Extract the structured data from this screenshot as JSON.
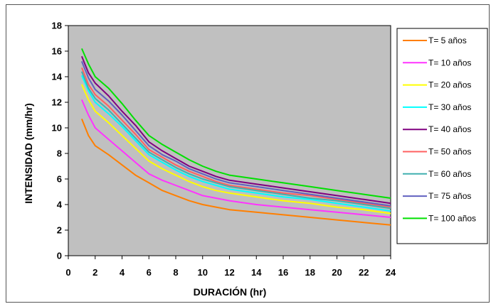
{
  "chart_data": {
    "type": "line",
    "title": "",
    "xlabel": "DURACIÓN (hr)",
    "ylabel": "INTENSIDAD (mm/hr)",
    "xlim": [
      0,
      24
    ],
    "ylim": [
      0,
      18
    ],
    "xticks": [
      0,
      2,
      4,
      6,
      8,
      10,
      12,
      14,
      16,
      18,
      20,
      22,
      24
    ],
    "yticks": [
      0,
      2,
      4,
      6,
      8,
      10,
      12,
      14,
      16,
      18
    ],
    "plot_background": "#c0c0c0",
    "grid": false,
    "legend_position": "right",
    "x": [
      1,
      1.5,
      2,
      3,
      4,
      5,
      6,
      7,
      8,
      9,
      10,
      11,
      12,
      14,
      16,
      18,
      20,
      22,
      24
    ],
    "series": [
      {
        "name": "T= 5 años",
        "color": "#ff7f00",
        "values": [
          10.7,
          9.4,
          8.6,
          7.9,
          7.1,
          6.3,
          5.7,
          5.1,
          4.7,
          4.3,
          4.0,
          3.8,
          3.6,
          3.4,
          3.2,
          3.0,
          2.8,
          2.6,
          2.4
        ]
      },
      {
        "name": "T= 10 años",
        "color": "#ff33ff",
        "values": [
          12.2,
          11.0,
          10.0,
          9.1,
          8.2,
          7.3,
          6.4,
          5.9,
          5.5,
          5.1,
          4.7,
          4.5,
          4.3,
          4.0,
          3.8,
          3.6,
          3.4,
          3.2,
          3.0
        ]
      },
      {
        "name": "T= 20 años",
        "color": "#ffff00",
        "values": [
          13.4,
          12.2,
          11.3,
          10.4,
          9.4,
          8.4,
          7.4,
          6.8,
          6.3,
          5.8,
          5.4,
          5.1,
          4.9,
          4.6,
          4.3,
          4.1,
          3.8,
          3.6,
          3.3
        ]
      },
      {
        "name": "T= 30 años",
        "color": "#00ffff",
        "values": [
          14.1,
          12.9,
          12.0,
          11.1,
          10.1,
          9.0,
          7.9,
          7.3,
          6.7,
          6.2,
          5.8,
          5.5,
          5.2,
          4.9,
          4.6,
          4.4,
          4.1,
          3.8,
          3.5
        ]
      },
      {
        "name": "T= 40 años",
        "color": "#800080",
        "values": [
          15.6,
          14.3,
          13.5,
          12.5,
          11.3,
          10.2,
          8.9,
          8.2,
          7.6,
          7.0,
          6.6,
          6.2,
          5.9,
          5.6,
          5.3,
          5.0,
          4.7,
          4.4,
          4.1
        ]
      },
      {
        "name": "T= 50 años",
        "color": "#ff6060",
        "values": [
          14.7,
          13.4,
          12.6,
          11.7,
          10.6,
          9.5,
          8.3,
          7.7,
          7.1,
          6.6,
          6.2,
          5.8,
          5.5,
          5.2,
          4.9,
          4.7,
          4.4,
          4.1,
          3.8
        ]
      },
      {
        "name": "T= 60 años",
        "color": "#40b0b0",
        "values": [
          14.4,
          13.1,
          12.3,
          11.4,
          10.3,
          9.2,
          8.1,
          7.5,
          6.9,
          6.4,
          6.0,
          5.7,
          5.4,
          5.1,
          4.8,
          4.5,
          4.3,
          4.0,
          3.7
        ]
      },
      {
        "name": "T= 75 años",
        "color": "#6060c0",
        "values": [
          15.2,
          13.9,
          13.0,
          12.1,
          11.0,
          9.8,
          8.6,
          7.9,
          7.4,
          6.8,
          6.4,
          6.0,
          5.7,
          5.4,
          5.1,
          4.8,
          4.5,
          4.2,
          3.9
        ]
      },
      {
        "name": "T= 100 años",
        "color": "#00e000",
        "values": [
          16.2,
          15.0,
          14.0,
          13.1,
          11.9,
          10.6,
          9.4,
          8.7,
          8.1,
          7.5,
          7.0,
          6.6,
          6.3,
          6.0,
          5.7,
          5.4,
          5.1,
          4.8,
          4.5
        ]
      }
    ]
  }
}
